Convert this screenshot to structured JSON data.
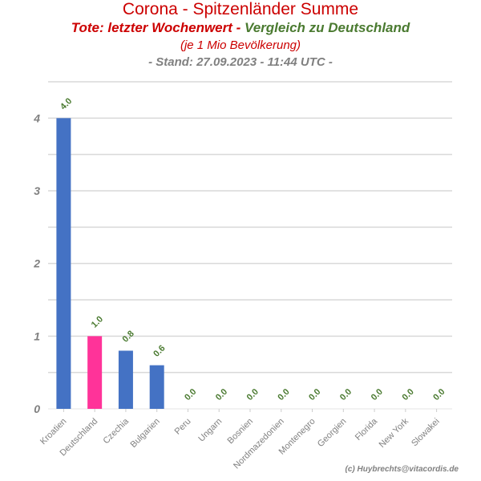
{
  "header": {
    "title": "Corona - Spitzenländer Summe",
    "subtitle_part1": "Tote: letzter Wochenwert - ",
    "subtitle_part2": "Vergleich zu Deutschland",
    "note": "(je 1 Mio Bevölkerung)",
    "stand": "- Stand: 27.09.2023 - 11:44 UTC -"
  },
  "credit": "(c) Huybrechts@vitacordis.de",
  "colors": {
    "title": "#cc0000",
    "green": "#4a7a30",
    "bar_default": "#4472c4",
    "bar_highlight": "#ff3399",
    "grid": "#d9d9d9",
    "axis_text": "#808080"
  },
  "chart_data": {
    "type": "bar",
    "title": "Corona - Spitzenländer Summe",
    "xlabel": "",
    "ylabel": "",
    "ylim": [
      0,
      4.5
    ],
    "yticks": [
      0,
      1,
      2,
      3,
      4
    ],
    "grid": true,
    "categories": [
      "Kroatien",
      "Deutschland",
      "Czechia",
      "Bulgarien",
      "Peru",
      "Ungarn",
      "Bosnien",
      "Nordmazedonien",
      "Montenegro",
      "Georgien",
      "Florida",
      "New York",
      "Slowakei"
    ],
    "values": [
      4.0,
      1.0,
      0.8,
      0.6,
      0.0,
      0.0,
      0.0,
      0.0,
      0.0,
      0.0,
      0.0,
      0.0,
      0.0
    ],
    "value_labels": [
      "4.0",
      "1.0",
      "0.8",
      "0.6",
      "0.0",
      "0.0",
      "0.0",
      "0.0",
      "0.0",
      "0.0",
      "0.0",
      "0.0",
      "0.0"
    ],
    "highlight": "Deutschland"
  }
}
